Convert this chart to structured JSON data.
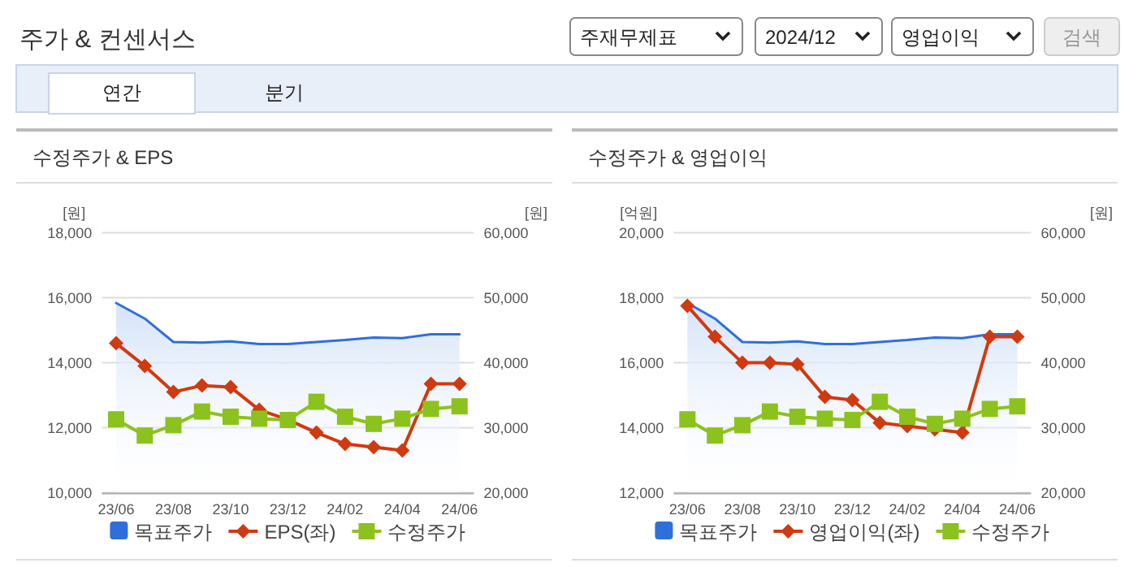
{
  "chart_data": [
    {
      "type": "other",
      "title": "주가 & 컨센서스",
      "annotations": [
        "주재무제표",
        "2024/12",
        "영업이익",
        "검색",
        "연간",
        "분기"
      ]
    },
    {
      "type": "line",
      "title": "수정주가 & EPS",
      "ylabel": "[원]",
      "y2label": "[원]",
      "categories": [
        "23/06",
        null,
        "23/08",
        null,
        "23/10",
        null,
        "23/12",
        null,
        "24/02",
        null,
        "24/04",
        null,
        "24/06"
      ],
      "ylim": [
        10000,
        18000
      ],
      "yticks": [
        {
          "value": 10000,
          "label": "10,000"
        },
        {
          "value": 12000,
          "label": "12,000"
        },
        {
          "value": 14000,
          "label": "14,000"
        },
        {
          "value": 16000,
          "label": "16,000"
        },
        {
          "value": 18000,
          "label": "18,000"
        }
      ],
      "y2lim": [
        20000,
        60000
      ],
      "y2ticks": [
        {
          "value": 20000,
          "label": "20,000"
        },
        {
          "value": 30000,
          "label": "30,000"
        },
        {
          "value": 40000,
          "label": "40,000"
        },
        {
          "value": 50000,
          "label": "50,000"
        },
        {
          "value": 60000,
          "label": "60,000"
        }
      ],
      "grid": "y",
      "legend": "bottom",
      "series": [
        {
          "name": "목표주가",
          "type": "area",
          "axis": "y2",
          "color": "#2f6fdb",
          "values": [
            49200,
            46800,
            43200,
            43100,
            43300,
            42900,
            42900,
            43200,
            43500,
            43900,
            43800,
            44400,
            44400
          ]
        },
        {
          "name": "EPS(좌)",
          "type": "line",
          "axis": "y",
          "marker": "diamond",
          "color": "#d03a10",
          "values": [
            14600,
            13900,
            13100,
            13300,
            13250,
            12550,
            12250,
            11850,
            11500,
            11400,
            11300,
            13350,
            13350
          ]
        },
        {
          "name": "수정주가",
          "type": "line",
          "axis": "y2",
          "marker": "square",
          "color": "#8cc21d",
          "values": [
            31300,
            28800,
            30400,
            32500,
            31700,
            31400,
            31200,
            34000,
            31700,
            30600,
            31400,
            32900,
            33300
          ]
        }
      ]
    },
    {
      "type": "line",
      "title": "수정주가 & 영업이익",
      "ylabel": "[억원]",
      "y2label": "[원]",
      "categories": [
        "23/06",
        null,
        "23/08",
        null,
        "23/10",
        null,
        "23/12",
        null,
        "24/02",
        null,
        "24/04",
        null,
        "24/06"
      ],
      "ylim": [
        12000,
        20000
      ],
      "yticks": [
        {
          "value": 12000,
          "label": "12,000"
        },
        {
          "value": 14000,
          "label": "14,000"
        },
        {
          "value": 16000,
          "label": "16,000"
        },
        {
          "value": 18000,
          "label": "18,000"
        },
        {
          "value": 20000,
          "label": "20,000"
        }
      ],
      "y2lim": [
        20000,
        60000
      ],
      "y2ticks": [
        {
          "value": 20000,
          "label": "20,000"
        },
        {
          "value": 30000,
          "label": "30,000"
        },
        {
          "value": 40000,
          "label": "40,000"
        },
        {
          "value": 50000,
          "label": "50,000"
        },
        {
          "value": 60000,
          "label": "60,000"
        }
      ],
      "grid": "y",
      "legend": "bottom",
      "series": [
        {
          "name": "목표주가",
          "type": "area",
          "axis": "y2",
          "color": "#2f6fdb",
          "values": [
            49200,
            46800,
            43200,
            43100,
            43300,
            42900,
            42900,
            43200,
            43500,
            43900,
            43800,
            44400,
            44400
          ]
        },
        {
          "name": "영업이익(좌)",
          "type": "line",
          "axis": "y",
          "marker": "diamond",
          "color": "#d03a10",
          "values": [
            17750,
            16800,
            16000,
            16000,
            15950,
            14950,
            14850,
            14150,
            14050,
            13950,
            13850,
            16800,
            16800
          ]
        },
        {
          "name": "수정주가",
          "type": "line",
          "axis": "y2",
          "marker": "square",
          "color": "#8cc21d",
          "values": [
            31300,
            28800,
            30400,
            32500,
            31700,
            31400,
            31200,
            34000,
            31700,
            30600,
            31400,
            32900,
            33300
          ]
        }
      ]
    }
  ]
}
